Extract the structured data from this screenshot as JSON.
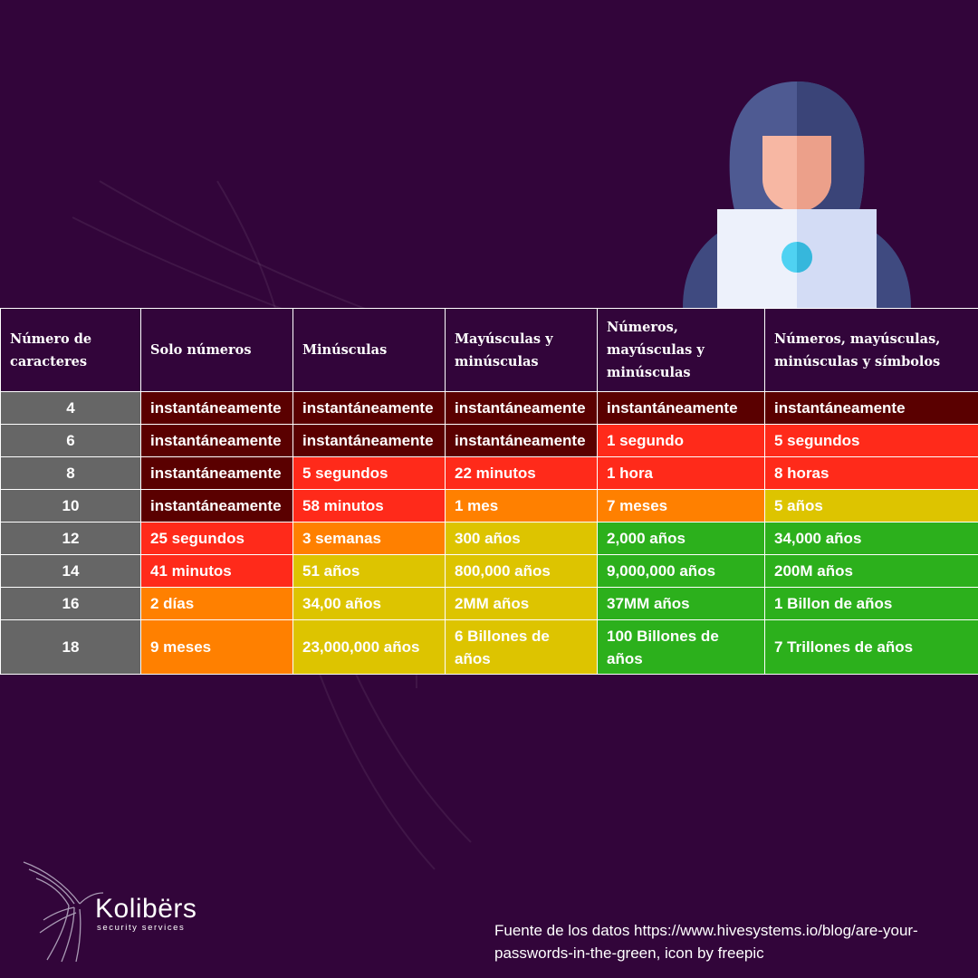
{
  "colors": {
    "background": "#32053a",
    "number_cell": "#666666",
    "instant": "#5a0000",
    "seconds_minutes": "#ff2a1a",
    "days_months": "#ff8000",
    "years": "#ddc400",
    "safe": "#2cb01c"
  },
  "icons": {
    "hacker": "hooded-hacker-with-laptop-icon",
    "logo": "hummingbird-logo-icon"
  },
  "table": {
    "headers": [
      "Número de caracteres",
      "Solo números",
      "Minúsculas",
      "Mayúsculas y minúsculas",
      "Números, mayúsculas y minúsculas",
      "Números, mayúsculas, minúsculas y símbolos"
    ],
    "rows": [
      {
        "chars": "4",
        "cells": [
          {
            "text": "instantáneamente",
            "level": "instant"
          },
          {
            "text": "instantáneamente",
            "level": "instant"
          },
          {
            "text": "instantáneamente",
            "level": "instant"
          },
          {
            "text": "instantáneamente",
            "level": "instant"
          },
          {
            "text": "instantáneamente",
            "level": "instant"
          }
        ]
      },
      {
        "chars": "6",
        "cells": [
          {
            "text": "instantáneamente",
            "level": "instant"
          },
          {
            "text": "instantáneamente",
            "level": "instant"
          },
          {
            "text": "instantáneamente",
            "level": "instant"
          },
          {
            "text": "1 segundo",
            "level": "seconds_minutes"
          },
          {
            "text": "5 segundos",
            "level": "seconds_minutes"
          }
        ]
      },
      {
        "chars": "8",
        "cells": [
          {
            "text": "instantáneamente",
            "level": "instant"
          },
          {
            "text": "5 segundos",
            "level": "seconds_minutes"
          },
          {
            "text": "22 minutos",
            "level": "seconds_minutes"
          },
          {
            "text": "1 hora",
            "level": "seconds_minutes"
          },
          {
            "text": "8 horas",
            "level": "seconds_minutes"
          }
        ]
      },
      {
        "chars": "10",
        "cells": [
          {
            "text": "instantáneamente",
            "level": "instant"
          },
          {
            "text": "58 minutos",
            "level": "seconds_minutes"
          },
          {
            "text": "1 mes",
            "level": "days_months"
          },
          {
            "text": "7 meses",
            "level": "days_months"
          },
          {
            "text": "5 años",
            "level": "years"
          }
        ]
      },
      {
        "chars": "12",
        "cells": [
          {
            "text": "25 segundos",
            "level": "seconds_minutes"
          },
          {
            "text": "3 semanas",
            "level": "days_months"
          },
          {
            "text": "300 años",
            "level": "years"
          },
          {
            "text": "2,000 años",
            "level": "safe"
          },
          {
            "text": "34,000 años",
            "level": "safe"
          }
        ]
      },
      {
        "chars": "14",
        "cells": [
          {
            "text": "41 minutos",
            "level": "seconds_minutes"
          },
          {
            "text": "51 años",
            "level": "years"
          },
          {
            "text": "800,000 años",
            "level": "years"
          },
          {
            "text": "9,000,000 años",
            "level": "safe"
          },
          {
            "text": "200M años",
            "level": "safe"
          }
        ]
      },
      {
        "chars": "16",
        "cells": [
          {
            "text": "2 días",
            "level": "days_months"
          },
          {
            "text": "34,00 años",
            "level": "years"
          },
          {
            "text": "2MM años",
            "level": "years"
          },
          {
            "text": "37MM años",
            "level": "safe"
          },
          {
            "text": "1 Billon de años",
            "level": "safe"
          }
        ]
      },
      {
        "chars": "18",
        "cells": [
          {
            "text": "9 meses",
            "level": "days_months"
          },
          {
            "text": "23,000,000 años",
            "level": "years"
          },
          {
            "text": "6 Billones de años",
            "level": "years"
          },
          {
            "text": "100 Billones de años",
            "level": "safe"
          },
          {
            "text": "7 Trillones de años",
            "level": "safe"
          }
        ]
      }
    ]
  },
  "brand": {
    "name": "Kolibërs",
    "tagline": "security services"
  },
  "source": "Fuente de los datos https://www.hivesystems.io/blog/are-your-passwords-in-the-green, icon by freepic"
}
